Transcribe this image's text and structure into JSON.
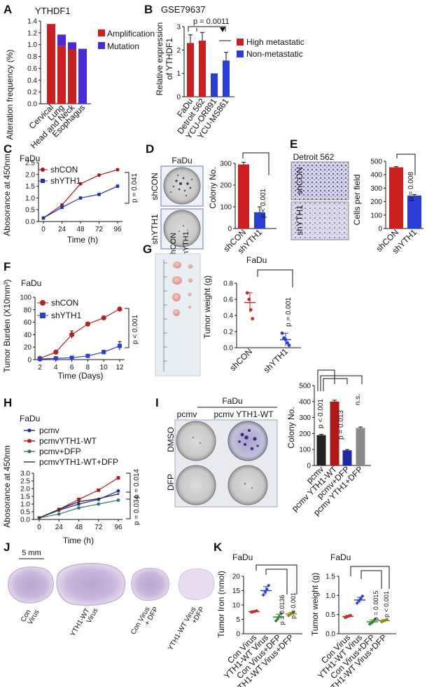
{
  "colors": {
    "red": "#cc1f1f",
    "blue": "#2a3ed6",
    "black": "#222222",
    "gray": "#8a8a8a",
    "green": "#2e8a2e",
    "olive": "#8a8a1a",
    "teal": "#2e7a6e",
    "navy": "#1a2aa8"
  },
  "panel_labels": [
    "A",
    "B",
    "C",
    "D",
    "E",
    "F",
    "G",
    "H",
    "I",
    "J",
    "K"
  ],
  "panelA": {
    "title": "YTHDF1",
    "ylabel": "Alteration frequency (%)",
    "legend_amp": "Amplification",
    "legend_mut": "Mutation"
  },
  "panelB": {
    "title": "GSE79637",
    "ylabel_1": "Relative expression",
    "ylabel_2": "of YTHDF1",
    "p": "p = 0.0011",
    "legend_high": "High metastatic",
    "legend_non": "Non-metastatic"
  },
  "panelC": {
    "title": "FaDu",
    "ylabel": "Abosorance at 450nm",
    "xlabel": "Time (h)",
    "legend_1": "shCON",
    "legend_2": "shYTH1",
    "p": "p = 0.041"
  },
  "panelD": {
    "title": "FaDu",
    "row_1": "shCON",
    "row_2": "shYTH1",
    "ylabel": "Colony No.",
    "p": "p < 0.001"
  },
  "panelE": {
    "title": "Detroit 562",
    "row_1": "shCON",
    "row_2": "shYTH1",
    "ylabel": "Cells per field",
    "p": "p = 0.008"
  },
  "panelF": {
    "title": "FaDu",
    "ylabel": "Tumor Burden (X10mm³)",
    "xlabel": "Time (Days)",
    "legend_1": "shCON",
    "legend_2": "shYTH1",
    "p": "p < 0.001"
  },
  "panelG": {
    "title": "FaDu",
    "col_1": "shCON",
    "col_2": "shYTH1",
    "ylabel": "Tumor weight (g)",
    "p": "p = 0.001"
  },
  "panelH": {
    "title": "FaDu",
    "ylabel": "Abosorance at 450nm",
    "xlabel": "Time (h)",
    "legend": [
      "pcmv",
      "pcmvYTH1-WT",
      "pcmv+DFP",
      "pcmvYTH1-WT+DFP"
    ],
    "p_1": "p = 0.014",
    "p_2": "p = 0.034"
  },
  "panelI": {
    "title": "FaDu",
    "col_1": "pcmv",
    "col_2": "pcmv YTH1-WT",
    "row_1": "DMSO",
    "row_2": "DFP",
    "ylabel": "Colony No.",
    "p_1": "p < 0.001",
    "p_2": "p = 0.013",
    "p_3": "n.s."
  },
  "panelJ": {
    "scale": "5 mm",
    "labels": [
      [
        "Con",
        "Virus"
      ],
      [
        "YTH1-WT",
        "Virus"
      ],
      [
        "Con Virus",
        "+ DFP"
      ],
      [
        "YTH1-WT Virus",
        "+DFP"
      ]
    ]
  },
  "panelK1": {
    "title": "FaDu",
    "ylabel": "Tumor Iron (nmol)",
    "p_1": "p = 0.0136",
    "p_2": "p < 0.001"
  },
  "panelK2": {
    "title": "FaDu",
    "ylabel": "Tumor weight (g)",
    "p_1": "p = 0.0015",
    "p_2": "p < 0.001"
  },
  "chart_data": [
    {
      "panel": "A",
      "type": "bar",
      "title": "YTHDF1",
      "ylabel": "Alteration frequency (%)",
      "ylim": [
        0,
        1.4
      ],
      "ticks": [
        0,
        0.2,
        0.4,
        0.6,
        0.8,
        1.0,
        1.2,
        1.4
      ],
      "categories": [
        "Cervical",
        "Lung",
        "Head and Neck",
        "Esophagus"
      ],
      "series": [
        {
          "name": "Amplification",
          "values": [
            1.35,
            0.98,
            0.92,
            0.0
          ]
        },
        {
          "name": "Mutation",
          "values": [
            0.0,
            0.19,
            0.12,
            0.93
          ]
        }
      ]
    },
    {
      "panel": "B",
      "type": "bar",
      "ylim": [
        0,
        3
      ],
      "ticks": [
        0,
        1,
        2,
        3
      ],
      "categories": [
        "FaDu",
        "Detroit 562",
        "YCU-OR891",
        "YCU-MS861"
      ],
      "values": [
        2.3,
        2.4,
        1.0,
        1.55
      ],
      "errors": [
        0.35,
        0.35,
        0,
        0.35
      ],
      "series": [
        {
          "name": "High metastatic",
          "categories": [
            "FaDu",
            "Detroit 562"
          ]
        },
        {
          "name": "Non-metastatic",
          "categories": [
            "YCU-OR891",
            "YCU-MS861"
          ]
        }
      ]
    },
    {
      "panel": "C",
      "type": "line",
      "xlabel": "Time (h)",
      "ylabel": "Abosorance at 450nm",
      "x": [
        0,
        24,
        48,
        72,
        96
      ],
      "ylim": [
        0,
        2.5
      ],
      "yticks": [
        0,
        0.5,
        1.0,
        1.5,
        2.0,
        2.5
      ],
      "series": [
        {
          "name": "shCON",
          "values": [
            0.15,
            0.7,
            1.6,
            1.97,
            2.2
          ]
        },
        {
          "name": "shYTH1",
          "values": [
            0.15,
            0.6,
            1.0,
            1.15,
            1.5
          ]
        }
      ]
    },
    {
      "panel": "D",
      "type": "bar",
      "ylabel": "Colony No.",
      "categories": [
        "shCON",
        "shYTH1"
      ],
      "values": [
        295,
        75
      ],
      "errors": [
        10,
        25
      ],
      "ylim": [
        0,
        300
      ],
      "ticks": [
        0,
        100,
        200,
        300
      ]
    },
    {
      "panel": "E",
      "type": "bar",
      "ylabel": "Cells per field",
      "categories": [
        "shCON",
        "shYTH1"
      ],
      "values": [
        455,
        245
      ],
      "errors": [
        5,
        8
      ],
      "ylim": [
        0,
        500
      ],
      "ticks": [
        0,
        100,
        200,
        300,
        400,
        500
      ]
    },
    {
      "panel": "F",
      "type": "line",
      "xlabel": "Time (Days)",
      "x": [
        2,
        4,
        6,
        8,
        10,
        12
      ],
      "ylim": [
        0,
        100
      ],
      "yticks": [
        0,
        20,
        40,
        60,
        80,
        100
      ],
      "series": [
        {
          "name": "shCON",
          "values": [
            2,
            12,
            40,
            57,
            67,
            81
          ],
          "errors": [
            1,
            2,
            6,
            3,
            2,
            2
          ]
        },
        {
          "name": "shYTH1",
          "values": [
            1,
            2,
            3,
            6,
            12,
            22
          ],
          "errors": [
            1,
            1,
            1,
            2,
            3,
            7
          ]
        }
      ]
    },
    {
      "panel": "G",
      "type": "scatter",
      "ylabel": "Tumor weight (g)",
      "categories": [
        "shCON",
        "shYTH1"
      ],
      "ylim": [
        0,
        0.8
      ],
      "ticks": [
        0,
        0.2,
        0.4,
        0.6,
        0.8
      ],
      "points": [
        [
          0.68,
          0.6,
          0.47,
          0.36
        ],
        [
          0.18,
          0.12,
          0.1,
          0.06,
          0.03
        ]
      ],
      "means": [
        0.56,
        0.1
      ],
      "sd": [
        0.12,
        0.08
      ]
    },
    {
      "panel": "H",
      "type": "line",
      "xlabel": "Time (h)",
      "x": [
        0,
        24,
        48,
        72,
        96
      ],
      "ylim": [
        0,
        3
      ],
      "yticks": [
        0,
        0.5,
        1.0,
        1.5,
        2.0,
        2.5,
        3.0
      ],
      "series": [
        {
          "name": "pcmv",
          "values": [
            0.1,
            0.6,
            1.0,
            1.3,
            1.85
          ]
        },
        {
          "name": "pcmvYTH1-WT",
          "values": [
            0.1,
            0.65,
            1.3,
            1.9,
            2.7
          ]
        },
        {
          "name": "pcmv+DFP",
          "values": [
            0.1,
            0.35,
            0.75,
            1.0,
            1.25
          ]
        },
        {
          "name": "pcmvYTH1-WT+DFP",
          "values": [
            0.1,
            0.65,
            1.15,
            1.35,
            1.65
          ]
        }
      ]
    },
    {
      "panel": "I",
      "type": "bar",
      "ylabel": "Colony No.",
      "categories": [
        "pcmv",
        "pcmv YTH1-WT",
        "pcmv+DFP",
        "pcmv YTH1+DFP"
      ],
      "values": [
        190,
        400,
        95,
        235
      ],
      "errors": [
        5,
        8,
        5,
        6
      ],
      "ylim": [
        0,
        500
      ],
      "ticks": [
        0,
        100,
        200,
        300,
        400,
        500
      ]
    },
    {
      "panel": "K-iron",
      "type": "scatter",
      "ylabel": "Tumor Iron (nmol)",
      "categories": [
        "Con Virus",
        "YTH1-WT Virus",
        "Con Virus+DFP",
        "YTH1-WT Virus+DFP"
      ],
      "ylim": [
        0,
        20
      ],
      "ticks": [
        0,
        5,
        10,
        15,
        20
      ],
      "points": [
        [
          7.5,
          7.6,
          7.8,
          8.0
        ],
        [
          13.5,
          14.5,
          15.5,
          16.8
        ],
        [
          4.5,
          5.2,
          6.0,
          7.0
        ],
        [
          6.3,
          6.8,
          7.2,
          7.6
        ]
      ],
      "means": [
        7.7,
        15.0,
        5.8,
        6.9
      ],
      "sd": [
        0.3,
        1.4,
        1.0,
        0.5
      ]
    },
    {
      "panel": "K-weight",
      "type": "scatter",
      "ylabel": "Tumor weight (g)",
      "categories": [
        "Con Virus",
        "YTH1-WT Virus",
        "Con Virus+DFP",
        "YTH1-WT Virus+DFP"
      ],
      "ylim": [
        0,
        1.5
      ],
      "ticks": [
        0,
        0.5,
        1.0,
        1.5
      ],
      "points": [
        [
          0.42,
          0.44,
          0.46,
          0.48
        ],
        [
          0.8,
          0.86,
          0.92,
          0.98
        ],
        [
          0.25,
          0.28,
          0.32,
          0.38
        ],
        [
          0.31,
          0.33,
          0.35,
          0.37
        ]
      ],
      "means": [
        0.45,
        0.88,
        0.31,
        0.34
      ],
      "sd": [
        0.03,
        0.07,
        0.05,
        0.03
      ]
    }
  ]
}
